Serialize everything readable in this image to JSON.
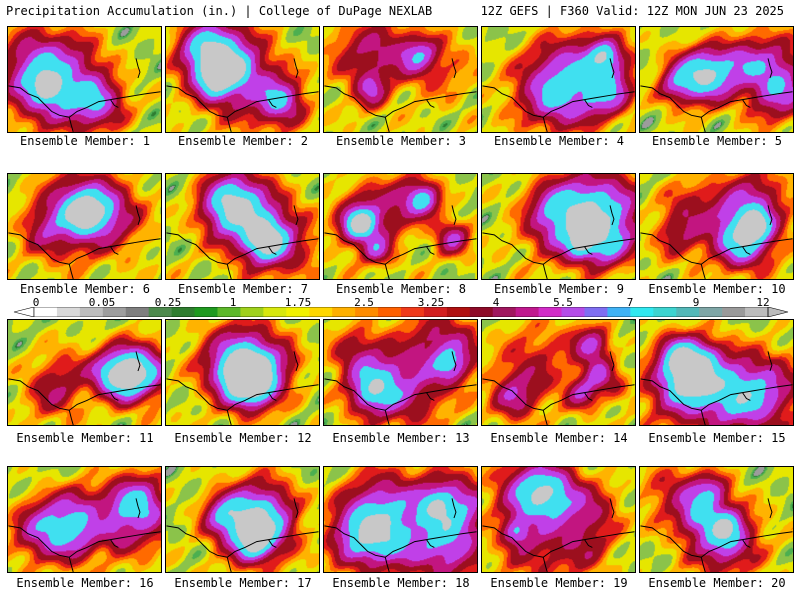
{
  "header": {
    "left": "Precipitation Accumulation (in.) | College of DuPage NEXLAB",
    "right": "12Z GEFS | F360 Valid: 12Z MON JUN 23 2025"
  },
  "panels": [
    {
      "label": "Ensemble Member: 1"
    },
    {
      "label": "Ensemble Member: 2"
    },
    {
      "label": "Ensemble Member: 3"
    },
    {
      "label": "Ensemble Member: 4"
    },
    {
      "label": "Ensemble Member: 5"
    },
    {
      "label": "Ensemble Member: 6"
    },
    {
      "label": "Ensemble Member: 7"
    },
    {
      "label": "Ensemble Member: 8"
    },
    {
      "label": "Ensemble Member: 9"
    },
    {
      "label": "Ensemble Member: 10"
    },
    {
      "label": "Ensemble Member: 11"
    },
    {
      "label": "Ensemble Member: 12"
    },
    {
      "label": "Ensemble Member: 13"
    },
    {
      "label": "Ensemble Member: 14"
    },
    {
      "label": "Ensemble Member: 15"
    },
    {
      "label": "Ensemble Member: 16"
    },
    {
      "label": "Ensemble Member: 17"
    },
    {
      "label": "Ensemble Member: 18"
    },
    {
      "label": "Ensemble Member: 19"
    },
    {
      "label": "Ensemble Member: 20"
    }
  ],
  "colorbar": {
    "ticks": [
      "0",
      "0.05",
      "0.25",
      "1",
      "1.75",
      "2.5",
      "3.25",
      "4",
      "5.5",
      "7",
      "9",
      "12"
    ],
    "colors": [
      "#ffffff",
      "#d9d9d9",
      "#bdbdbd",
      "#9e9e9e",
      "#7f7f7f",
      "#4d8a4d",
      "#2f7d2f",
      "#1f9a1f",
      "#5cb82a",
      "#9fd11c",
      "#d7e80d",
      "#f2f200",
      "#ffd700",
      "#ffb000",
      "#ff8c00",
      "#ff6000",
      "#f03a1a",
      "#d21f1f",
      "#b01010",
      "#8e0a28",
      "#a0165e",
      "#c0188e",
      "#d22cc8",
      "#b44ce8",
      "#7f6ef2",
      "#3fb2f5",
      "#30e8f0",
      "#3cd4d0",
      "#52b8b8",
      "#7ea6a6",
      "#9a9a9a",
      "#bcbcbc"
    ]
  },
  "map_scale": {
    "levels": [
      0,
      0.05,
      0.25,
      1,
      1.75,
      2.5,
      3.25,
      4,
      5.5,
      7,
      9,
      12
    ],
    "colors": [
      "#9c9c9c",
      "#2e7d32",
      "#4caf50",
      "#8bc34a",
      "#e6e600",
      "#ffb300",
      "#ff6a00",
      "#e01b1b",
      "#9c0f1e",
      "#c21580",
      "#c040e8",
      "#40e0f0",
      "#c8c8c8"
    ]
  }
}
